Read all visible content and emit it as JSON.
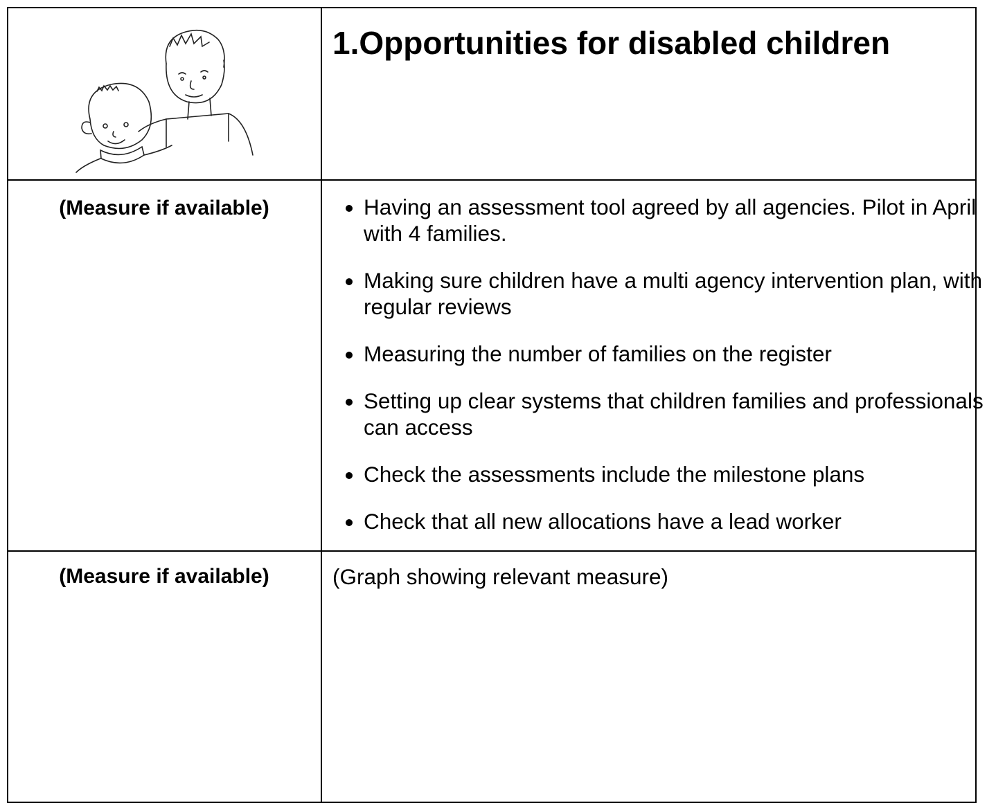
{
  "header": {
    "number": "1.",
    "title": "Opportunities for disabled children"
  },
  "rows": [
    {
      "label": "(Measure if available)",
      "items": [
        "Having an assessment tool agreed by all agencies. Pilot in April with 4 families.",
        "Making sure children have a multi agency intervention plan, with regular reviews",
        "Measuring the number of families on the register",
        "Setting up clear systems that children families and professionals can access",
        "Check the assessments include the milestone plans",
        "Check that all new allocations have a lead worker"
      ]
    },
    {
      "label": "(Measure if available)",
      "text": "(Graph showing relevant measure)"
    }
  ]
}
